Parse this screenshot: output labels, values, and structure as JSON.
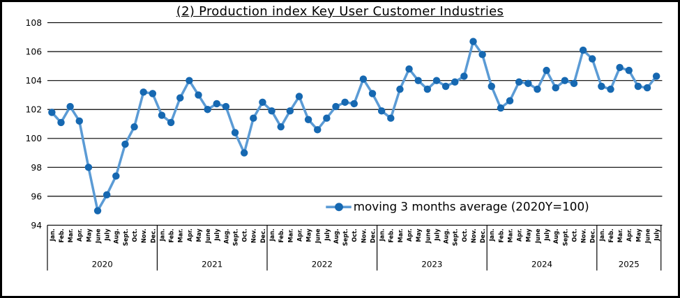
{
  "chart_data": {
    "type": "line",
    "title": "(2) Production index Key User Customer Industries",
    "legend": "moving 3 months average  (2020Y=100)",
    "ylim": [
      94,
      108
    ],
    "yticks": [
      94,
      96,
      98,
      100,
      102,
      104,
      106,
      108
    ],
    "grid": "horizontal",
    "legend_position": "inside-bottom-right",
    "month_labels": [
      "Jan.",
      "Feb.",
      "Mar.",
      "Apr.",
      "May",
      "June",
      "July",
      "Aug.",
      "Sept.",
      "Oct.",
      "Nov.",
      "Dec."
    ],
    "years": [
      {
        "year": "2020",
        "n_months": 12
      },
      {
        "year": "2021",
        "n_months": 12
      },
      {
        "year": "2022",
        "n_months": 12
      },
      {
        "year": "2023",
        "n_months": 12
      },
      {
        "year": "2024",
        "n_months": 12
      },
      {
        "year": "2025",
        "n_months": 7
      }
    ],
    "series": [
      {
        "name": "moving 3 months average (2020Y=100)",
        "values": [
          101.8,
          101.1,
          102.2,
          101.2,
          98.0,
          95.0,
          96.1,
          97.4,
          99.6,
          100.8,
          103.2,
          103.1,
          101.6,
          101.1,
          102.8,
          104.0,
          103.0,
          102.0,
          102.4,
          102.2,
          100.4,
          99.0,
          101.4,
          102.5,
          101.9,
          100.8,
          101.9,
          102.9,
          101.3,
          100.6,
          101.4,
          102.2,
          102.5,
          102.4,
          104.1,
          103.1,
          101.9,
          101.4,
          103.4,
          104.8,
          104.0,
          103.4,
          104.0,
          103.6,
          103.9,
          104.3,
          106.7,
          105.8,
          103.6,
          102.1,
          102.6,
          103.9,
          103.8,
          103.4,
          104.7,
          103.5,
          104.0,
          103.8,
          106.1,
          105.5,
          103.6,
          103.4,
          104.9,
          104.7,
          103.6,
          103.5,
          104.3
        ]
      }
    ],
    "colors": {
      "line": "#5B9BD5",
      "marker": "#1668B1",
      "grid": "#000000",
      "text": "#000000"
    }
  }
}
